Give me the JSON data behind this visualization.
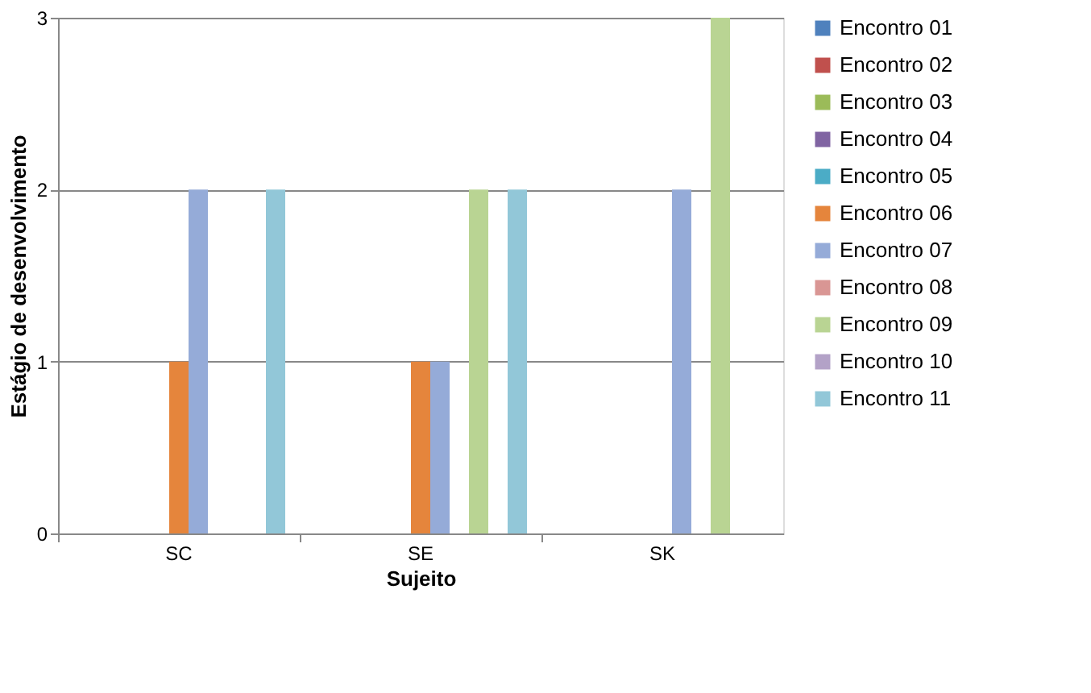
{
  "chart_data": {
    "type": "bar",
    "xlabel": "Sujeito",
    "ylabel": "Estágio de desenvolvimento",
    "categories": [
      "SC",
      "SE",
      "SK"
    ],
    "series": [
      {
        "name": "Encontro 01",
        "color": "#4f81bd",
        "values": [
          null,
          null,
          null
        ]
      },
      {
        "name": "Encontro 02",
        "color": "#c0504d",
        "values": [
          null,
          null,
          null
        ]
      },
      {
        "name": "Encontro 03",
        "color": "#9bbb59",
        "values": [
          null,
          null,
          null
        ]
      },
      {
        "name": "Encontro 04",
        "color": "#8064a2",
        "values": [
          null,
          null,
          null
        ]
      },
      {
        "name": "Encontro 05",
        "color": "#4bacc6",
        "values": [
          null,
          null,
          null
        ]
      },
      {
        "name": "Encontro 06",
        "color": "#e5853c",
        "values": [
          1,
          1,
          null
        ]
      },
      {
        "name": "Encontro 07",
        "color": "#95abd8",
        "values": [
          2,
          1,
          2
        ]
      },
      {
        "name": "Encontro 08",
        "color": "#d99694",
        "values": [
          null,
          null,
          null
        ]
      },
      {
        "name": "Encontro 09",
        "color": "#b9d493",
        "values": [
          null,
          2,
          3
        ]
      },
      {
        "name": "Encontro 10",
        "color": "#b3a2c7",
        "values": [
          null,
          null,
          null
        ]
      },
      {
        "name": "Encontro 11",
        "color": "#92c7d8",
        "values": [
          2,
          2,
          null
        ]
      }
    ],
    "ylim": [
      0,
      3
    ],
    "yticks": [
      0,
      1,
      2,
      3
    ],
    "grid": "y",
    "legend": "right"
  }
}
